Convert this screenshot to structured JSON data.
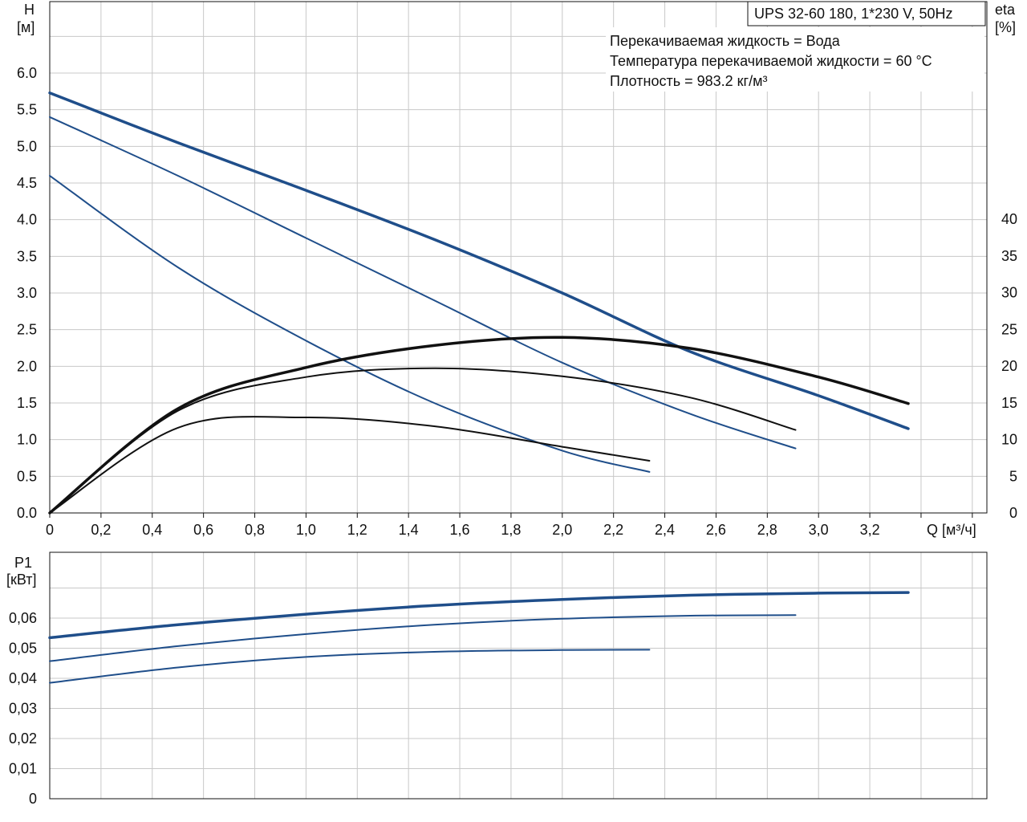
{
  "chart_data": [
    {
      "type": "line",
      "title": "UPS 32-60 180, 1*230 V, 50Hz",
      "info_lines": [
        "Перекачиваемая жидкость = Вода",
        "Температура перекачиваемой жидкости = 60 °C",
        "Плотность = 983.2 кг/м³"
      ],
      "xlabel": "Q [м³/ч]",
      "ylabel": [
        "H",
        "[м]"
      ],
      "y2label": [
        "eta",
        "[%]"
      ],
      "xlim": [
        0,
        3.6
      ],
      "ylim": [
        0,
        6.5
      ],
      "y2lim": [
        0,
        45
      ],
      "x_ticks": [
        "0",
        "0,2",
        "0,4",
        "0,6",
        "0,8",
        "1,0",
        "1,2",
        "1,4",
        "1,6",
        "1,8",
        "2,0",
        "2,2",
        "2,4",
        "2,6",
        "2,8",
        "3,0",
        "3,2"
      ],
      "y_ticks": [
        "0.0",
        "0.5",
        "1.0",
        "1.5",
        "2.0",
        "2.5",
        "3.0",
        "3.5",
        "4.0",
        "4.5",
        "5.0",
        "5.5",
        "6.0"
      ],
      "y2_ticks": [
        "0",
        "5",
        "10",
        "15",
        "20",
        "25",
        "30",
        "35",
        "40"
      ],
      "grid": true,
      "series": [
        {
          "kind": "head",
          "axis": "left",
          "color": "#1f4e8a",
          "width": 3.5,
          "x": [
            0,
            0.5,
            1.0,
            1.5,
            2.0,
            2.5,
            3.0,
            3.35
          ],
          "y": [
            5.73,
            5.05,
            4.4,
            3.73,
            3.0,
            2.2,
            1.6,
            1.15
          ]
        },
        {
          "kind": "head",
          "axis": "left",
          "color": "#1f4e8a",
          "width": 2,
          "x": [
            0,
            0.5,
            1.0,
            1.5,
            2.0,
            2.5,
            2.91
          ],
          "y": [
            5.4,
            4.6,
            3.75,
            2.9,
            2.05,
            1.35,
            0.88
          ]
        },
        {
          "kind": "head",
          "axis": "left",
          "color": "#1f4e8a",
          "width": 2,
          "x": [
            0,
            0.5,
            1.0,
            1.5,
            2.0,
            2.34
          ],
          "y": [
            4.6,
            3.35,
            2.35,
            1.5,
            0.85,
            0.56
          ]
        },
        {
          "kind": "eta",
          "axis": "right",
          "color": "#111111",
          "width": 3.5,
          "x": [
            0,
            0.5,
            1.0,
            1.5,
            2.0,
            2.5,
            3.0,
            3.35
          ],
          "y": [
            0,
            14.2,
            19.8,
            22.8,
            23.9,
            22.4,
            18.5,
            14.9
          ]
        },
        {
          "kind": "eta",
          "axis": "right",
          "color": "#111111",
          "width": 2,
          "x": [
            0,
            0.5,
            1.0,
            1.5,
            2.0,
            2.5,
            2.91
          ],
          "y": [
            0,
            13.9,
            18.5,
            19.7,
            18.6,
            15.7,
            11.3
          ]
        },
        {
          "kind": "eta",
          "axis": "right",
          "color": "#111111",
          "width": 2,
          "x": [
            0,
            0.5,
            1.0,
            1.5,
            2.0,
            2.34
          ],
          "y": [
            0,
            11.6,
            13.0,
            11.8,
            9.0,
            7.1
          ]
        }
      ]
    },
    {
      "type": "line",
      "ylabel": [
        "P1",
        "[кВт]"
      ],
      "xlim": [
        0,
        3.6
      ],
      "ylim": [
        0,
        0.07
      ],
      "y_ticks": [
        "0",
        "0,01",
        "0,02",
        "0,03",
        "0,04",
        "0,05",
        "0,06"
      ],
      "grid": true,
      "series": [
        {
          "kind": "power",
          "color": "#1f4e8a",
          "width": 3.5,
          "x": [
            0,
            0.5,
            1.0,
            1.5,
            2.0,
            2.5,
            3.0,
            3.35
          ],
          "y": [
            0.0535,
            0.0578,
            0.0613,
            0.0642,
            0.0662,
            0.0676,
            0.0683,
            0.0685
          ]
        },
        {
          "kind": "power",
          "color": "#1f4e8a",
          "width": 2,
          "x": [
            0,
            0.5,
            1.0,
            1.5,
            2.0,
            2.5,
            2.91
          ],
          "y": [
            0.0457,
            0.0507,
            0.0547,
            0.0578,
            0.0598,
            0.0608,
            0.061
          ]
        },
        {
          "kind": "power",
          "color": "#1f4e8a",
          "width": 2,
          "x": [
            0,
            0.5,
            1.0,
            1.5,
            2.0,
            2.34
          ],
          "y": [
            0.0385,
            0.0436,
            0.0471,
            0.0488,
            0.0494,
            0.0495
          ]
        }
      ]
    }
  ]
}
